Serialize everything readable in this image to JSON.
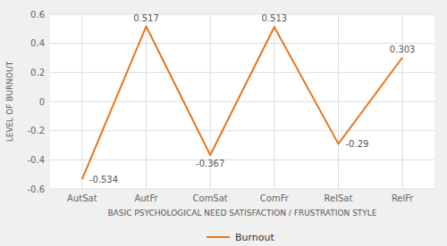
{
  "chart_data": {
    "type": "line",
    "categories": [
      "AutSat",
      "AutFr",
      "ComSat",
      "ComFr",
      "RelSat",
      "RelFr"
    ],
    "series": [
      {
        "name": "Burnout",
        "color": "#E8761A",
        "values": [
          -0.534,
          0.517,
          -0.367,
          0.513,
          -0.29,
          0.303
        ]
      }
    ],
    "xlabel": "BASIC PSYCHOLOGICAL NEED SATISFACTION / FRUSTRATION STYLE",
    "ylabel": "LEVEL OF BURNOUT",
    "ylim": [
      -0.6,
      0.6
    ],
    "yticks": [
      -0.6,
      -0.4,
      -0.2,
      0,
      0.2,
      0.4,
      0.6
    ],
    "grid": true,
    "legend": "bottom",
    "data_labels": true
  }
}
